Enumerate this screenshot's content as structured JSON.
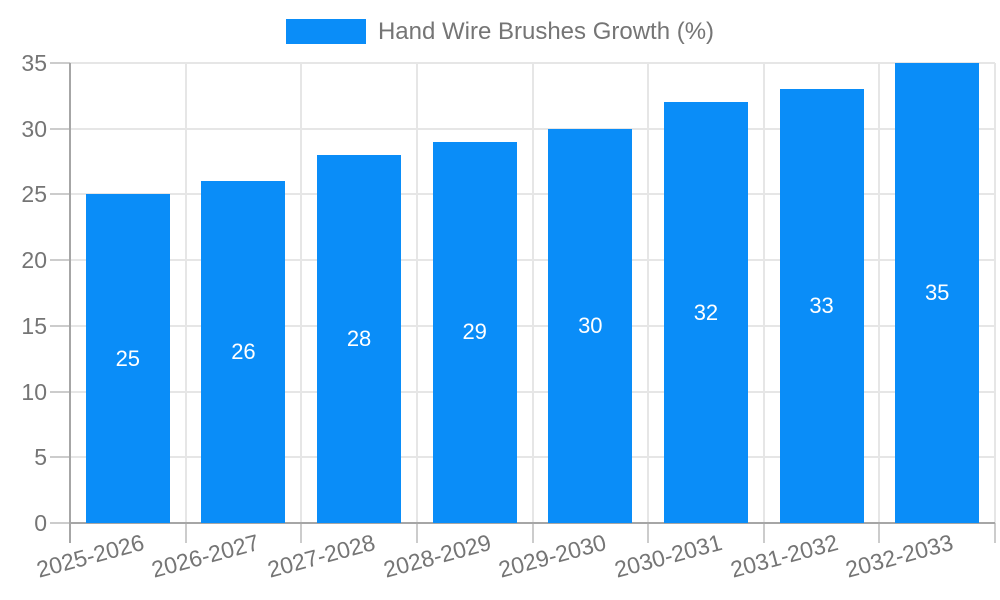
{
  "chart_data": {
    "type": "bar",
    "title": "",
    "legend": {
      "label": "Hand Wire Brushes Growth (%)",
      "position": "top"
    },
    "categories": [
      "2025-2026",
      "2026-2027",
      "2027-2028",
      "2028-2029",
      "2029-2030",
      "2030-2031",
      "2031-2032",
      "2032-2033"
    ],
    "series": [
      {
        "name": "Hand Wire Brushes Growth (%)",
        "values": [
          25,
          26,
          28,
          29,
          30,
          32,
          33,
          35
        ]
      }
    ],
    "bar_value_labels": [
      "25",
      "26",
      "28",
      "29",
      "30",
      "32",
      "33",
      "35"
    ],
    "xlabel": "",
    "ylabel": "",
    "ylim": [
      0,
      35
    ],
    "yticks": [
      0,
      5,
      10,
      15,
      20,
      25,
      30,
      35
    ],
    "grid": true,
    "colors": {
      "bar": "#0a8df8",
      "bar_label": "#ffffff",
      "axis_text": "#757575",
      "gridline": "#e6e6e6",
      "axis_line": "#a6a6a6",
      "tick": "#cccccc"
    }
  }
}
